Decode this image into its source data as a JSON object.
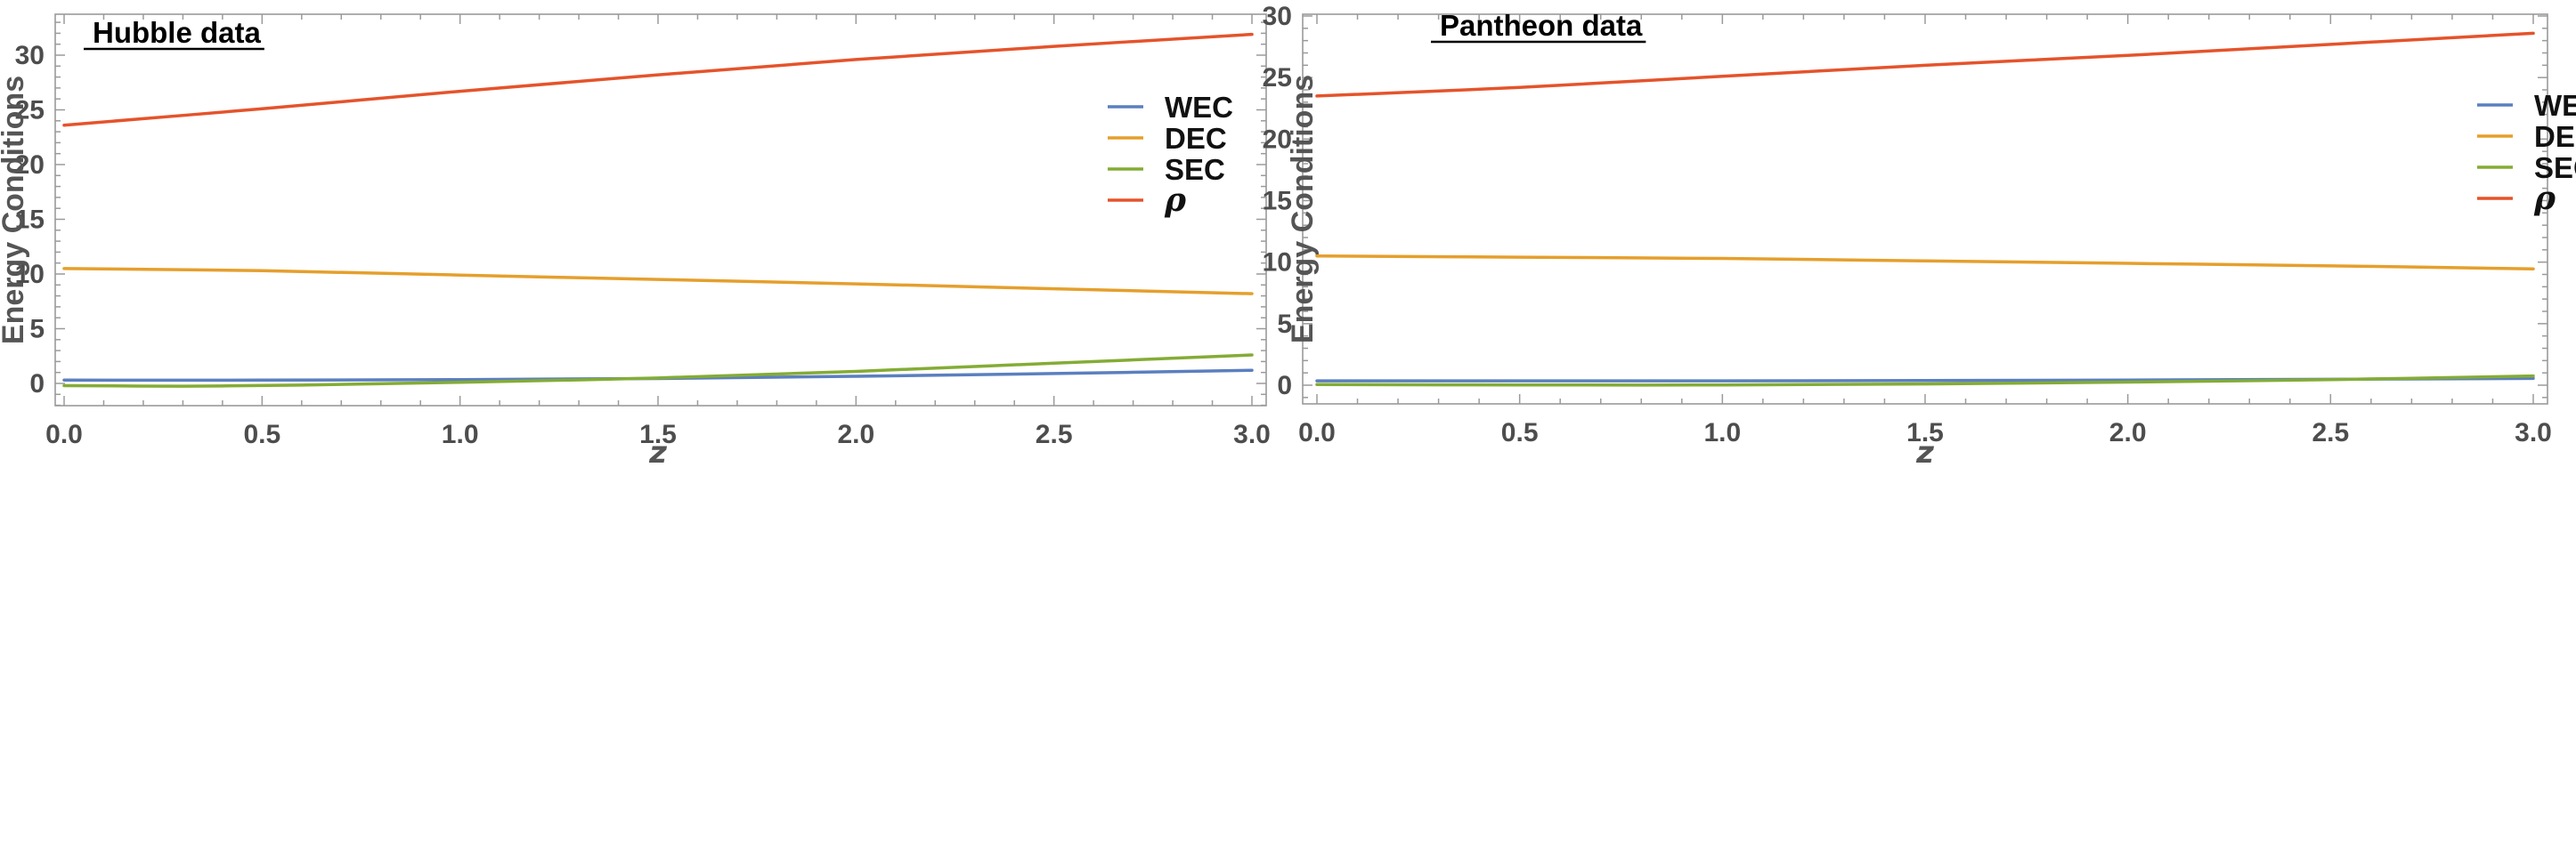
{
  "chart_data": [
    {
      "type": "line",
      "title": "Hubble data",
      "xlabel": "z",
      "ylabel": "Energy Conditions",
      "xlim": [
        -0.05,
        3.05
      ],
      "ylim": [
        -2,
        33.5
      ],
      "xticks": [
        0.0,
        0.5,
        1.0,
        1.5,
        2.0,
        2.5,
        3.0
      ],
      "xtick_labels": [
        "0.0",
        "0.5",
        "1.0",
        "1.5",
        "2.0",
        "2.5",
        "3.0"
      ],
      "yticks": [
        0,
        5,
        10,
        15,
        20,
        25,
        30
      ],
      "ytick_labels": [
        "0",
        "5",
        "10",
        "15",
        "20",
        "25",
        "30"
      ],
      "grid": false,
      "legend_position": "right",
      "series": [
        {
          "name": "WEC",
          "color": "#5b7fbf",
          "x": [
            0,
            0.5,
            1.0,
            1.5,
            2.0,
            2.5,
            3.0
          ],
          "y": [
            0.3,
            0.3,
            0.35,
            0.45,
            0.65,
            0.9,
            1.2
          ]
        },
        {
          "name": "DEC",
          "color": "#e59f2c",
          "x": [
            0,
            0.5,
            1.0,
            1.5,
            2.0,
            2.5,
            3.0
          ],
          "y": [
            10.5,
            10.3,
            9.9,
            9.5,
            9.1,
            8.65,
            8.2
          ]
        },
        {
          "name": "SEC",
          "color": "#84ac35",
          "x": [
            0,
            0.3,
            0.6,
            1.0,
            1.5,
            2.0,
            2.5,
            3.0
          ],
          "y": [
            -0.2,
            -0.25,
            -0.15,
            0.1,
            0.5,
            1.1,
            1.85,
            2.6
          ]
        },
        {
          "name": "ρ",
          "color": "#e5532b",
          "x": [
            0,
            0.5,
            1.0,
            1.5,
            2.0,
            2.5,
            3.0
          ],
          "y": [
            23.6,
            25.1,
            26.7,
            28.2,
            29.6,
            30.8,
            31.9
          ]
        }
      ]
    },
    {
      "type": "line",
      "title": "Pantheon data",
      "xlabel": "z",
      "ylabel": "Energy Conditions",
      "xlim": [
        -0.05,
        3.05
      ],
      "ylim": [
        -1.6,
        30.4
      ],
      "xticks": [
        0.0,
        0.5,
        1.0,
        1.5,
        2.0,
        2.5,
        3.0
      ],
      "xtick_labels": [
        "0.0",
        "0.5",
        "1.0",
        "1.5",
        "2.0",
        "2.5",
        "3.0"
      ],
      "yticks": [
        0,
        5,
        10,
        15,
        20,
        25,
        30
      ],
      "ytick_labels": [
        "0",
        "5",
        "10",
        "15",
        "20",
        "25",
        "30"
      ],
      "grid": false,
      "legend_position": "right",
      "series": [
        {
          "name": "WEC",
          "color": "#5b7fbf",
          "x": [
            0,
            0.5,
            1.0,
            1.5,
            2.0,
            2.5,
            3.0
          ],
          "y": [
            0.35,
            0.35,
            0.35,
            0.38,
            0.42,
            0.48,
            0.55
          ]
        },
        {
          "name": "DEC",
          "color": "#e59f2c",
          "x": [
            0,
            0.5,
            1.0,
            1.5,
            2.0,
            2.5,
            3.0
          ],
          "y": [
            10.5,
            10.4,
            10.3,
            10.1,
            9.9,
            9.7,
            9.45
          ]
        },
        {
          "name": "SEC",
          "color": "#84ac35",
          "x": [
            0,
            0.5,
            1.0,
            1.5,
            2.0,
            2.5,
            3.0
          ],
          "y": [
            0.05,
            0.02,
            0.02,
            0.1,
            0.25,
            0.45,
            0.75
          ]
        },
        {
          "name": "ρ",
          "color": "#e5532b",
          "x": [
            0,
            0.5,
            1.0,
            1.5,
            2.0,
            2.5,
            3.0
          ],
          "y": [
            23.5,
            24.2,
            25.1,
            26.0,
            26.8,
            27.7,
            28.6
          ]
        }
      ]
    }
  ]
}
